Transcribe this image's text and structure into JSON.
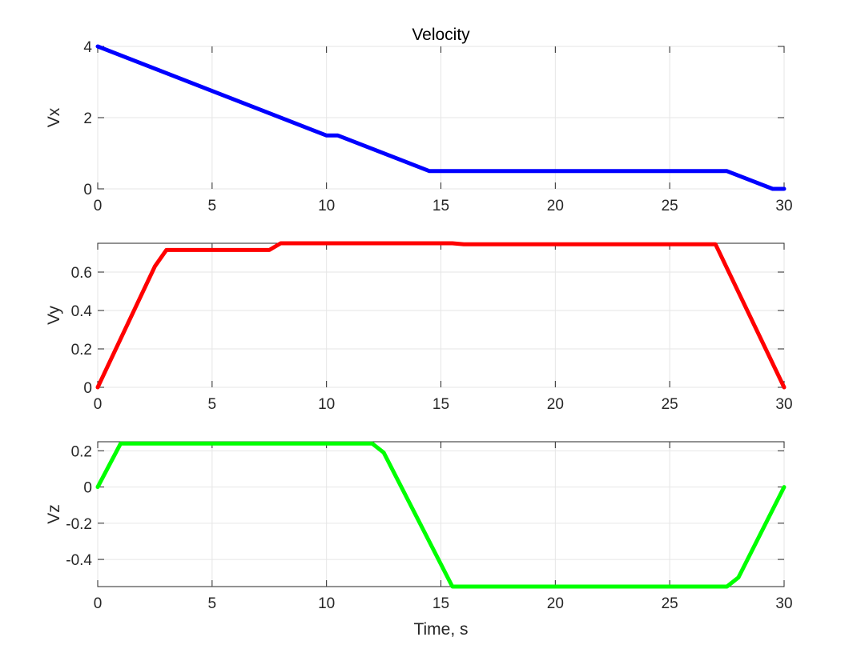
{
  "chart_data": [
    {
      "type": "line",
      "title": "Velocity",
      "xlabel": "",
      "ylabel": "Vx",
      "xlim": [
        0,
        30
      ],
      "ylim": [
        0,
        4
      ],
      "xticks": [
        0,
        5,
        10,
        15,
        20,
        25,
        30
      ],
      "yticks": [
        0,
        2,
        4
      ],
      "ytick_labels": [
        "0",
        "2",
        "4"
      ],
      "grid": true,
      "series": [
        {
          "color": "#0000ff",
          "x": [
            0,
            10,
            10.5,
            14.5,
            27.5,
            29.5,
            30
          ],
          "y": [
            4.0,
            1.5,
            1.5,
            0.5,
            0.5,
            0.0,
            0.0
          ]
        }
      ]
    },
    {
      "type": "line",
      "title": "",
      "xlabel": "",
      "ylabel": "Vy",
      "xlim": [
        0,
        30
      ],
      "ylim": [
        0,
        0.75
      ],
      "xticks": [
        0,
        5,
        10,
        15,
        20,
        25,
        30
      ],
      "yticks": [
        0,
        0.2,
        0.4,
        0.6
      ],
      "ytick_labels": [
        "0",
        "0.2",
        "0.4",
        "0.6"
      ],
      "grid": true,
      "series": [
        {
          "color": "#ff0000",
          "x": [
            0,
            2.5,
            3,
            7.5,
            8,
            15.5,
            16,
            27,
            30
          ],
          "y": [
            0.0,
            0.63,
            0.715,
            0.715,
            0.75,
            0.75,
            0.745,
            0.745,
            0.0
          ]
        }
      ]
    },
    {
      "type": "line",
      "title": "",
      "xlabel": "Time, s",
      "ylabel": "Vz",
      "xlim": [
        0,
        30
      ],
      "ylim": [
        -0.55,
        0.25
      ],
      "xticks": [
        0,
        5,
        10,
        15,
        20,
        25,
        30
      ],
      "yticks": [
        -0.4,
        -0.2,
        0,
        0.2
      ],
      "ytick_labels": [
        "-0.4",
        "-0.2",
        "0",
        "0.2"
      ],
      "grid": true,
      "series": [
        {
          "color": "#00ff00",
          "x": [
            0,
            1,
            12,
            12.5,
            15.5,
            27.5,
            28,
            30
          ],
          "y": [
            0.0,
            0.24,
            0.24,
            0.19,
            -0.55,
            -0.55,
            -0.5,
            0.0
          ]
        }
      ]
    }
  ]
}
